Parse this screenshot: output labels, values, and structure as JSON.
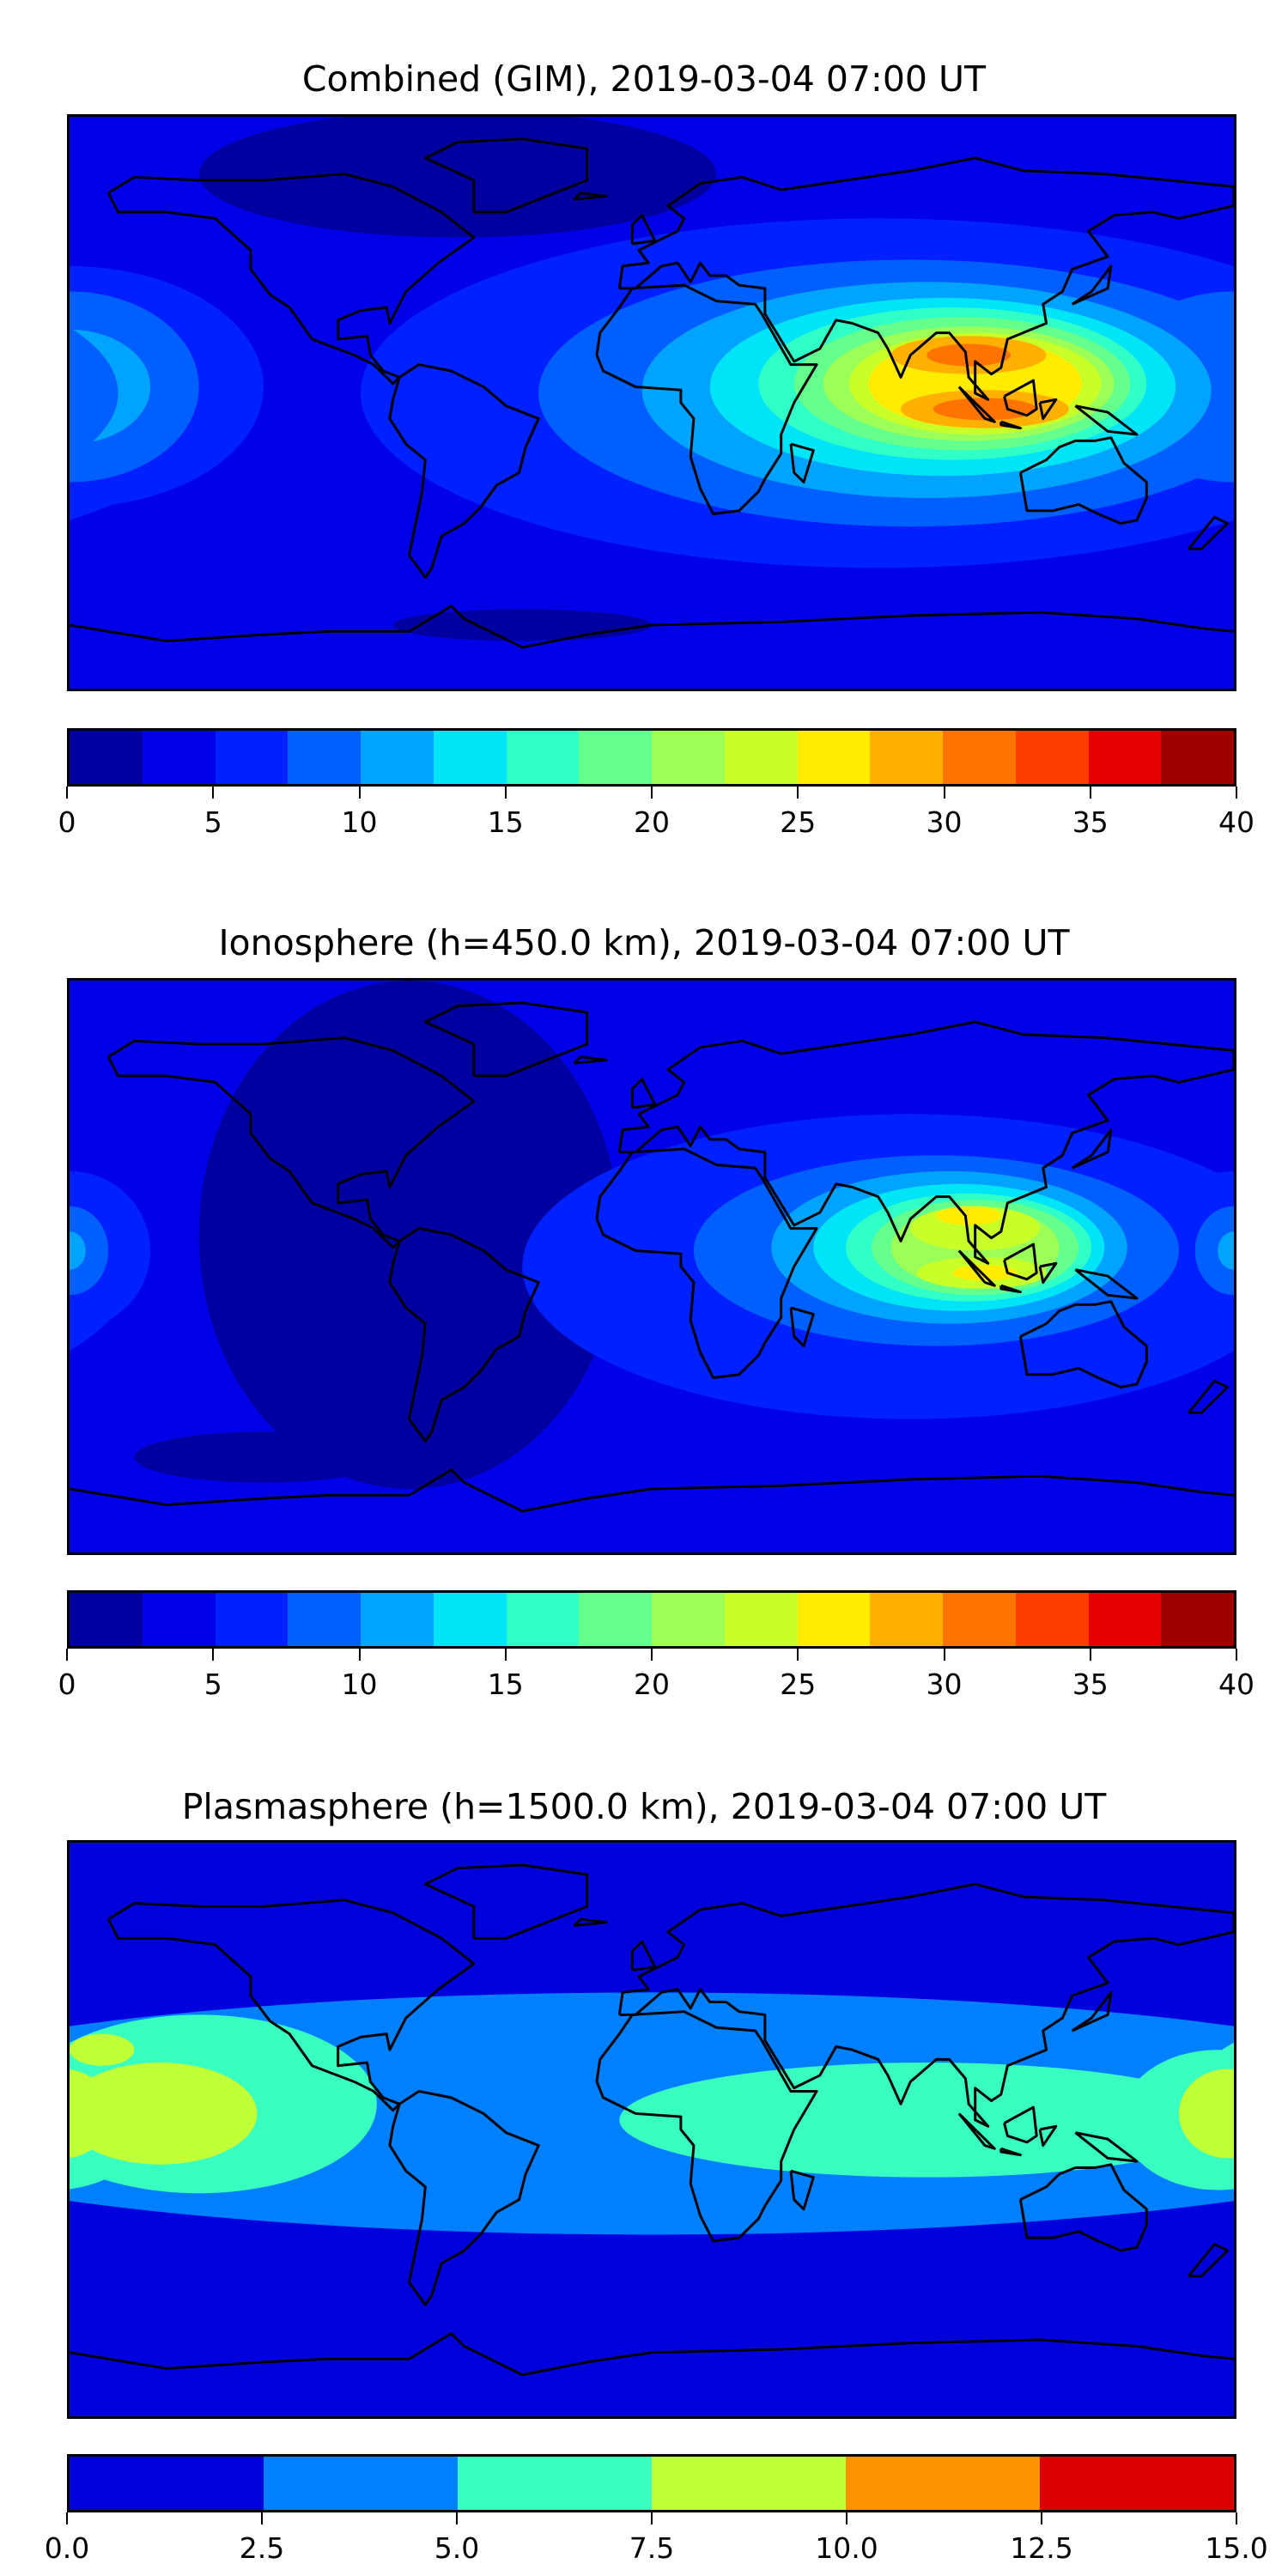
{
  "chart_data": [
    {
      "type": "heatmap",
      "title": "Combined (GIM), 2019-03-04 07:00 UT",
      "colorbar": {
        "ticks": [
          "0",
          "5",
          "10",
          "15",
          "20",
          "25",
          "30",
          "35",
          "40"
        ],
        "range": [
          0,
          40
        ],
        "step": 2.5,
        "colors": [
          "#0000a0",
          "#0000e8",
          "#0020ff",
          "#0060ff",
          "#00a4ff",
          "#00e4f8",
          "#30ffc8",
          "#64ff8c",
          "#9cff58",
          "#c8ff28",
          "#ffec00",
          "#ffb000",
          "#ff7400",
          "#ff3c00",
          "#e40000",
          "#9c0000"
        ]
      },
      "background_level": 1,
      "regions": [
        {
          "lon": -60,
          "lat": 72,
          "rlon": 80,
          "rlat": 20,
          "level": 0
        },
        {
          "lon": -40,
          "lat": -70,
          "rlon": 40,
          "rlat": 5,
          "level": 0
        },
        {
          "lon": 70,
          "lat": 3,
          "rlon": 160,
          "rlat": 55,
          "level": 2
        },
        {
          "lon": -180,
          "lat": 5,
          "rlon": 60,
          "rlat": 38,
          "level": 2
        },
        {
          "lon": -180,
          "lat": 5,
          "rlon": 40,
          "rlat": 30,
          "level": 3
        },
        {
          "lon": -180,
          "lat": 5,
          "rlon": 25,
          "rlat": 18,
          "level": 4
        },
        {
          "lon": -180,
          "lat": 5,
          "rlon": 12,
          "rlat": 10,
          "level": 5
        },
        {
          "lon": 80,
          "lat": 3,
          "rlon": 115,
          "rlat": 42,
          "level": 3
        },
        {
          "lon": 85,
          "lat": 4,
          "rlon": 88,
          "rlat": 34,
          "level": 4
        },
        {
          "lon": 90,
          "lat": 5,
          "rlon": 72,
          "rlat": 28,
          "level": 5
        },
        {
          "lon": 93,
          "lat": 6,
          "rlon": 60,
          "rlat": 24,
          "level": 6
        },
        {
          "lon": 96,
          "lat": 6,
          "rlon": 52,
          "rlat": 21,
          "level": 7
        },
        {
          "lon": 98,
          "lat": 6,
          "rlon": 45,
          "rlat": 18,
          "level": 8
        },
        {
          "lon": 100,
          "lat": 6,
          "rlon": 39,
          "rlat": 16,
          "level": 9
        },
        {
          "lon": 100,
          "lat": 6,
          "rlon": 33,
          "rlat": 14,
          "level": 10
        },
        {
          "lon": 98,
          "lat": 15,
          "rlon": 24,
          "rlat": 6,
          "level": 11
        },
        {
          "lon": 103,
          "lat": -2,
          "rlon": 26,
          "rlat": 6,
          "level": 11
        },
        {
          "lon": 98,
          "lat": 15,
          "rlon": 13,
          "rlat": 3.5,
          "level": 12
        },
        {
          "lon": 103,
          "lat": -2,
          "rlon": 16,
          "rlat": 3.5,
          "level": 12
        }
      ]
    },
    {
      "type": "heatmap",
      "title": "Ionosphere  (h=450.0 km), 2019-03-04 07:00 UT",
      "colorbar": {
        "ticks": [
          "0",
          "5",
          "10",
          "15",
          "20",
          "25",
          "30",
          "35",
          "40"
        ],
        "range": [
          0,
          40
        ],
        "step": 2.5,
        "colors": [
          "#0000a0",
          "#0000e8",
          "#0020ff",
          "#0060ff",
          "#00a4ff",
          "#00e4f8",
          "#30ffc8",
          "#64ff8c",
          "#9cff58",
          "#c8ff28",
          "#ffec00",
          "#ffb000",
          "#ff7400",
          "#ff3c00",
          "#e40000",
          "#9c0000"
        ]
      },
      "background_level": 1,
      "regions": [
        {
          "lon": -75,
          "lat": 10,
          "rlon": 65,
          "rlat": 80,
          "level": 0
        },
        {
          "lon": -120,
          "lat": -60,
          "rlon": 40,
          "rlat": 8,
          "level": 0
        },
        {
          "lon": 80,
          "lat": 0,
          "rlon": 120,
          "rlat": 48,
          "level": 2
        },
        {
          "lon": -180,
          "lat": 5,
          "rlon": 25,
          "rlat": 25,
          "level": 2
        },
        {
          "lon": -180,
          "lat": 5,
          "rlon": 12,
          "rlat": 14,
          "level": 3
        },
        {
          "lon": -180,
          "lat": 5,
          "rlon": 5,
          "rlat": 6,
          "level": 4
        },
        {
          "lon": 88,
          "lat": 5,
          "rlon": 75,
          "rlat": 30,
          "level": 3
        },
        {
          "lon": 92,
          "lat": 6,
          "rlon": 55,
          "rlat": 24,
          "level": 4
        },
        {
          "lon": 95,
          "lat": 6,
          "rlon": 45,
          "rlat": 20,
          "level": 5
        },
        {
          "lon": 98,
          "lat": 6,
          "rlon": 38,
          "rlat": 17,
          "level": 6
        },
        {
          "lon": 100,
          "lat": 6,
          "rlon": 32,
          "rlat": 15,
          "level": 7
        },
        {
          "lon": 100,
          "lat": 6,
          "rlon": 26,
          "rlat": 13,
          "level": 8
        },
        {
          "lon": 100,
          "lat": 12,
          "rlon": 20,
          "rlat": 7,
          "level": 9
        },
        {
          "lon": 102,
          "lat": -2,
          "rlon": 20,
          "rlat": 5,
          "level": 9
        },
        {
          "lon": 98,
          "lat": 16,
          "rlon": 10,
          "rlat": 3,
          "level": 10
        },
        {
          "lon": 103,
          "lat": -2,
          "rlon": 10,
          "rlat": 2.5,
          "level": 10
        }
      ]
    },
    {
      "type": "heatmap",
      "title": "Plasmasphere (h=1500.0 km), 2019-03-04 07:00 UT",
      "colorbar": {
        "ticks": [
          "0.0",
          "2.5",
          "5.0",
          "7.5",
          "10.0",
          "12.5",
          "15.0"
        ],
        "range": [
          0,
          15
        ],
        "step": 2.5,
        "colors": [
          "#0000dd",
          "#0080ff",
          "#38ffc0",
          "#c0ff38",
          "#ff9400",
          "#dd0000"
        ]
      },
      "background_level": 0,
      "regions": [
        {
          "lon": 0,
          "lat": 5,
          "rlon": 260,
          "rlat": 38,
          "level": 1
        },
        {
          "lon": -140,
          "lat": 8,
          "rlon": 55,
          "rlat": 28,
          "level": 2
        },
        {
          "lon": 85,
          "lat": 3,
          "rlon": 95,
          "rlat": 18,
          "level": 2
        },
        {
          "lon": 175,
          "lat": 3,
          "rlon": 30,
          "rlat": 22,
          "level": 2
        },
        {
          "lon": -152,
          "lat": 5,
          "rlon": 30,
          "rlat": 16,
          "level": 3
        },
        {
          "lon": -170,
          "lat": 25,
          "rlon": 10,
          "rlat": 5,
          "level": 3
        },
        {
          "lon": 178,
          "lat": 5,
          "rlon": 15,
          "rlat": 14,
          "level": 3
        }
      ]
    }
  ]
}
